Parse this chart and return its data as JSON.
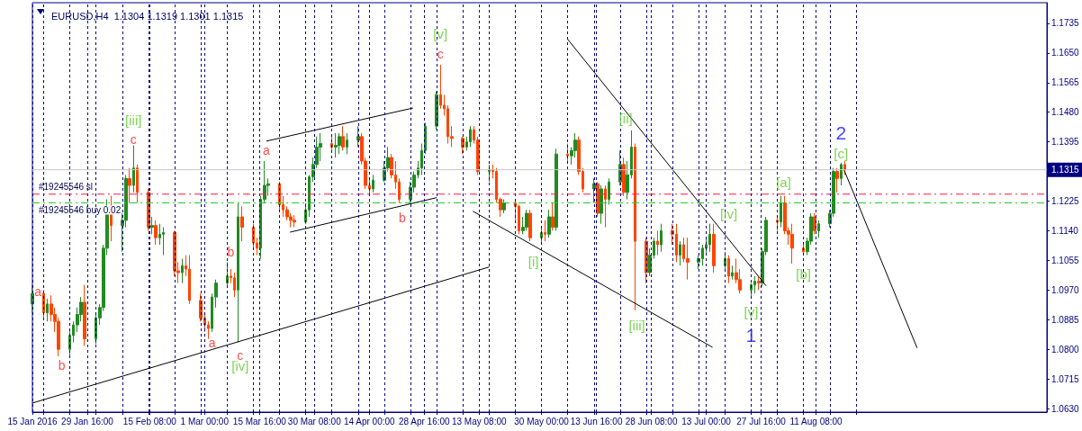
{
  "chart_data": {
    "type": "candlestick",
    "title": "EURUSD,H4  1.1304 1.1319 1.1301 1.1315",
    "xlim": [
      "2016-01-15",
      "2016-10-12"
    ],
    "ylim": [
      1.062,
      1.1794
    ],
    "xticks": [
      {
        "value": "2016-01-15",
        "label": "15 Jan 2016"
      },
      {
        "value": "2016-01-29T16:00",
        "label": "29 Jan 16:00"
      },
      {
        "value": "2016-02-15T08:00",
        "label": "15 Feb 08:00"
      },
      {
        "value": "2016-03-01T00:00",
        "label": "1 Mar 00:00"
      },
      {
        "value": "2016-03-15T16:00",
        "label": "15 Mar 16:00"
      },
      {
        "value": "2016-03-30T08:00",
        "label": "30 Mar 08:00"
      },
      {
        "value": "2016-04-14T00:00",
        "label": "14 Apr 00:00"
      },
      {
        "value": "2016-04-28T16:00",
        "label": "28 Apr 16:00"
      },
      {
        "value": "2016-05-13T08:00",
        "label": "13 May 08:00"
      },
      {
        "value": "2016-05-30T00:00",
        "label": "30 May 00:00"
      },
      {
        "value": "2016-06-13T16:00",
        "label": "13 Jun 16:00"
      },
      {
        "value": "2016-06-28T08:00",
        "label": "28 Jun 08:00"
      },
      {
        "value": "2016-07-13T00:00",
        "label": "13 Jul 00:00"
      },
      {
        "value": "2016-07-27T16:00",
        "label": "27 Jul 16:00"
      },
      {
        "value": "2016-08-11T08:00",
        "label": "11 Aug 08:00"
      },
      {
        "value": "2016-01-18",
        "label": null
      },
      {
        "value": "2016-01-25",
        "label": null
      },
      {
        "value": "2016-02-01",
        "label": null
      },
      {
        "value": "2016-02-08",
        "label": null
      },
      {
        "value": "2016-02-15",
        "label": null
      },
      {
        "value": "2016-02-22",
        "label": null
      },
      {
        "value": "2016-02-29",
        "label": null
      },
      {
        "value": "2016-03-07",
        "label": null
      },
      {
        "value": "2016-03-14",
        "label": null
      },
      {
        "value": "2016-03-21",
        "label": null
      },
      {
        "value": "2016-03-28",
        "label": null
      },
      {
        "value": "2016-04-04",
        "label": null
      },
      {
        "value": "2016-04-11",
        "label": null
      },
      {
        "value": "2016-04-18",
        "label": null
      },
      {
        "value": "2016-04-25",
        "label": null
      },
      {
        "value": "2016-05-02",
        "label": null
      },
      {
        "value": "2016-05-09",
        "label": null
      },
      {
        "value": "2016-05-16",
        "label": null
      },
      {
        "value": "2016-05-23",
        "label": null
      },
      {
        "value": "2016-06-06",
        "label": null
      },
      {
        "value": "2016-06-13",
        "label": null
      },
      {
        "value": "2016-06-20",
        "label": null
      },
      {
        "value": "2016-06-27",
        "label": null
      },
      {
        "value": "2016-07-04",
        "label": null
      },
      {
        "value": "2016-07-11",
        "label": null
      },
      {
        "value": "2016-07-18",
        "label": null
      },
      {
        "value": "2016-07-25",
        "label": null
      },
      {
        "value": "2016-08-01",
        "label": null
      },
      {
        "value": "2016-08-08",
        "label": null
      },
      {
        "value": "2016-08-15",
        "label": null
      },
      {
        "value": "2016-08-22",
        "label": null
      }
    ],
    "yticks": [
      {
        "value": 1.063,
        "label": "1.0630"
      },
      1.0715,
      {
        "value": 1.08,
        "label": "1.0800"
      },
      1.0885,
      {
        "value": 1.097,
        "label": "1.0970"
      },
      1.1055,
      {
        "value": 1.114,
        "label": "1.1140"
      },
      1.1225,
      1.1395,
      {
        "value": 1.148,
        "label": "1.1480"
      },
      1.1565,
      {
        "value": 1.165,
        "label": "1.1650"
      },
      1.1735
    ],
    "grid": "x",
    "ref_lines": [
      {
        "axis": "y",
        "value": 1.1245,
        "label": "#19245546 sl",
        "color": "#ff1a40",
        "line_style": "dashed"
      },
      {
        "axis": "y",
        "value": 1.122,
        "label": "#19245546 buy 0.02",
        "color": "#22cc22",
        "line_style": "dashed"
      },
      {
        "axis": "y",
        "value": 1.1315,
        "label": "1.1315",
        "color": "#c8c8c8",
        "line_style": "solid"
      }
    ],
    "annotations": [
      "a",
      "b",
      "[iii]",
      "c",
      "a",
      "b",
      "c",
      "[iv]",
      "a",
      "b",
      "[v]",
      "c",
      "[i]",
      "[ii]",
      "[iii]",
      "[iv]",
      "[v]",
      "1",
      "[a]",
      "[b]",
      "[c]",
      "2"
    ],
    "series": [
      {
        "x": [
          "2016-01-15",
          "2016-01-18",
          "2016-01-19",
          "2016-01-20",
          "2016-01-21",
          "2016-01-22",
          "2016-01-25",
          "2016-01-26",
          "2016-01-27",
          "2016-01-28",
          "2016-01-29",
          "2016-02-01",
          "2016-02-02",
          "2016-02-03",
          "2016-02-04",
          "2016-02-05",
          "2016-02-08",
          "2016-02-09",
          "2016-02-10",
          "2016-02-11",
          "2016-02-12",
          "2016-02-15",
          "2016-02-16",
          "2016-02-17",
          "2016-02-18",
          "2016-02-19",
          "2016-02-22",
          "2016-02-23",
          "2016-02-24",
          "2016-02-25",
          "2016-02-26",
          "2016-02-29",
          "2016-03-01",
          "2016-03-02",
          "2016-03-03",
          "2016-03-04",
          "2016-03-07",
          "2016-03-08",
          "2016-03-09",
          "2016-03-10",
          "2016-03-11",
          "2016-03-14",
          "2016-03-15",
          "2016-03-16",
          "2016-03-17",
          "2016-03-18",
          "2016-03-21",
          "2016-03-22",
          "2016-03-23",
          "2016-03-24",
          "2016-03-25",
          "2016-03-28",
          "2016-03-29",
          "2016-03-30",
          "2016-03-31",
          "2016-04-01",
          "2016-04-04",
          "2016-04-05",
          "2016-04-06",
          "2016-04-07",
          "2016-04-08",
          "2016-04-11",
          "2016-04-12",
          "2016-04-13",
          "2016-04-14",
          "2016-04-15",
          "2016-04-18",
          "2016-04-19",
          "2016-04-20",
          "2016-04-21",
          "2016-04-22",
          "2016-04-25",
          "2016-04-26",
          "2016-04-27",
          "2016-04-28",
          "2016-04-29",
          "2016-05-02",
          "2016-05-03",
          "2016-05-04",
          "2016-05-05",
          "2016-05-06",
          "2016-05-09",
          "2016-05-10",
          "2016-05-11",
          "2016-05-12",
          "2016-05-13",
          "2016-05-16",
          "2016-05-17",
          "2016-05-18",
          "2016-05-19",
          "2016-05-20",
          "2016-05-23",
          "2016-05-24",
          "2016-05-25",
          "2016-05-26",
          "2016-05-27",
          "2016-05-30",
          "2016-05-31",
          "2016-06-01",
          "2016-06-02",
          "2016-06-03",
          "2016-06-06",
          "2016-06-07",
          "2016-06-08",
          "2016-06-09",
          "2016-06-10",
          "2016-06-13",
          "2016-06-14",
          "2016-06-15",
          "2016-06-16",
          "2016-06-17",
          "2016-06-20",
          "2016-06-21",
          "2016-06-22",
          "2016-06-23",
          "2016-06-24",
          "2016-06-27",
          "2016-06-28",
          "2016-06-29",
          "2016-06-30",
          "2016-07-01",
          "2016-07-04",
          "2016-07-05",
          "2016-07-06",
          "2016-07-07",
          "2016-07-08",
          "2016-07-11",
          "2016-07-12",
          "2016-07-13",
          "2016-07-14",
          "2016-07-15",
          "2016-07-18",
          "2016-07-19",
          "2016-07-20",
          "2016-07-21",
          "2016-07-22",
          "2016-07-25",
          "2016-07-26",
          "2016-07-27",
          "2016-07-28",
          "2016-07-29",
          "2016-08-01",
          "2016-08-02",
          "2016-08-03",
          "2016-08-04",
          "2016-08-05",
          "2016-08-08",
          "2016-08-09",
          "2016-08-10",
          "2016-08-11",
          "2016-08-12",
          "2016-08-15",
          "2016-08-16",
          "2016-08-17",
          "2016-08-18",
          "2016-08-19"
        ],
        "ohlc": [
          [
            1.093,
            1.0985,
            1.0905,
            1.096
          ],
          [
            1.096,
            1.097,
            1.089,
            1.0905
          ],
          [
            1.0905,
            1.0945,
            1.088,
            1.093
          ],
          [
            1.093,
            1.0955,
            1.088,
            1.09
          ],
          [
            1.09,
            1.092,
            1.085,
            1.088
          ],
          [
            1.088,
            1.089,
            1.078,
            1.08
          ],
          [
            1.08,
            1.086,
            1.078,
            1.084
          ],
          [
            1.084,
            1.088,
            1.082,
            1.087
          ],
          [
            1.087,
            1.092,
            1.085,
            1.09
          ],
          [
            1.09,
            1.095,
            1.088,
            1.0935
          ],
          [
            1.0935,
            1.0985,
            1.081,
            1.083
          ],
          [
            1.083,
            1.09,
            1.0815,
            1.089
          ],
          [
            1.089,
            1.093,
            1.087,
            1.092
          ],
          [
            1.092,
            1.11,
            1.091,
            1.109
          ],
          [
            1.109,
            1.123,
            1.107,
            1.121
          ],
          [
            1.121,
            1.124,
            1.111,
            1.1155
          ],
          [
            1.1155,
            1.119,
            1.108,
            1.117
          ],
          [
            1.117,
            1.13,
            1.115,
            1.129
          ],
          [
            1.129,
            1.132,
            1.122,
            1.127
          ],
          [
            1.127,
            1.1385,
            1.125,
            1.132
          ],
          [
            1.132,
            1.133,
            1.122,
            1.125
          ],
          [
            1.125,
            1.126,
            1.114,
            1.115
          ],
          [
            1.115,
            1.118,
            1.113,
            1.1155
          ],
          [
            1.1155,
            1.117,
            1.11,
            1.112
          ],
          [
            1.112,
            1.116,
            1.11,
            1.113
          ],
          [
            1.113,
            1.115,
            1.107,
            1.1135
          ],
          [
            1.1135,
            1.114,
            1.101,
            1.1025
          ],
          [
            1.1025,
            1.105,
            1.099,
            1.102
          ],
          [
            1.102,
            1.106,
            1.099,
            1.104
          ],
          [
            1.104,
            1.107,
            1.101,
            1.103
          ],
          [
            1.103,
            1.107,
            1.093,
            1.094
          ],
          [
            1.094,
            1.096,
            1.088,
            1.089
          ],
          [
            1.089,
            1.09,
            1.085,
            1.087
          ],
          [
            1.087,
            1.088,
            1.083,
            1.086
          ],
          [
            1.086,
            1.096,
            1.085,
            1.095
          ],
          [
            1.095,
            1.1,
            1.092,
            1.099
          ],
          [
            1.099,
            1.105,
            1.098,
            1.101
          ],
          [
            1.101,
            1.103,
            1.099,
            1.1005
          ],
          [
            1.1005,
            1.102,
            1.095,
            1.097
          ],
          [
            1.097,
            1.122,
            1.082,
            1.118
          ],
          [
            1.118,
            1.121,
            1.111,
            1.115
          ],
          [
            1.115,
            1.116,
            1.109,
            1.1105
          ],
          [
            1.1105,
            1.112,
            1.107,
            1.109
          ],
          [
            1.109,
            1.124,
            1.106,
            1.123
          ],
          [
            1.123,
            1.134,
            1.122,
            1.127
          ],
          [
            1.127,
            1.129,
            1.124,
            1.1275
          ],
          [
            1.1275,
            1.128,
            1.12,
            1.1215
          ],
          [
            1.1215,
            1.124,
            1.118,
            1.12
          ],
          [
            1.12,
            1.121,
            1.117,
            1.118
          ],
          [
            1.118,
            1.119,
            1.115,
            1.117
          ],
          [
            1.117,
            1.1185,
            1.115,
            1.1165
          ],
          [
            1.1165,
            1.122,
            1.116,
            1.12
          ],
          [
            1.12,
            1.13,
            1.118,
            1.1295
          ],
          [
            1.1295,
            1.135,
            1.128,
            1.133
          ],
          [
            1.133,
            1.141,
            1.132,
            1.138
          ],
          [
            1.138,
            1.142,
            1.134,
            1.139
          ],
          [
            1.139,
            1.141,
            1.137,
            1.138
          ],
          [
            1.138,
            1.142,
            1.135,
            1.1385
          ],
          [
            1.1385,
            1.142,
            1.136,
            1.141
          ],
          [
            1.141,
            1.144,
            1.137,
            1.138
          ],
          [
            1.138,
            1.142,
            1.136,
            1.14
          ],
          [
            1.14,
            1.144,
            1.138,
            1.141
          ],
          [
            1.141,
            1.142,
            1.133,
            1.134
          ],
          [
            1.134,
            1.135,
            1.126,
            1.127
          ],
          [
            1.127,
            1.129,
            1.124,
            1.126
          ],
          [
            1.126,
            1.13,
            1.125,
            1.1285
          ],
          [
            1.1285,
            1.134,
            1.128,
            1.132
          ],
          [
            1.132,
            1.138,
            1.131,
            1.135
          ],
          [
            1.135,
            1.136,
            1.129,
            1.13
          ],
          [
            1.13,
            1.134,
            1.126,
            1.128
          ],
          [
            1.128,
            1.129,
            1.122,
            1.123
          ],
          [
            1.123,
            1.128,
            1.122,
            1.1265
          ],
          [
            1.1265,
            1.131,
            1.125,
            1.13
          ],
          [
            1.13,
            1.134,
            1.129,
            1.132
          ],
          [
            1.132,
            1.139,
            1.13,
            1.137
          ],
          [
            1.137,
            1.145,
            1.136,
            1.144
          ],
          [
            1.144,
            1.154,
            1.143,
            1.153
          ],
          [
            1.153,
            1.1616,
            1.149,
            1.15
          ],
          [
            1.15,
            1.153,
            1.147,
            1.149
          ],
          [
            1.149,
            1.15,
            1.139,
            1.141
          ],
          [
            1.141,
            1.144,
            1.138,
            1.1405
          ],
          [
            1.1405,
            1.141,
            1.136,
            1.138
          ],
          [
            1.138,
            1.141,
            1.137,
            1.1395
          ],
          [
            1.1395,
            1.144,
            1.138,
            1.143
          ],
          [
            1.143,
            1.144,
            1.139,
            1.14
          ],
          [
            1.14,
            1.141,
            1.13,
            1.131
          ],
          [
            1.131,
            1.133,
            1.128,
            1.1315
          ],
          [
            1.1315,
            1.133,
            1.129,
            1.131
          ],
          [
            1.131,
            1.132,
            1.122,
            1.123
          ],
          [
            1.123,
            1.1235,
            1.118,
            1.12
          ],
          [
            1.12,
            1.123,
            1.119,
            1.122
          ],
          [
            1.122,
            1.123,
            1.117,
            1.121
          ],
          [
            1.121,
            1.1215,
            1.113,
            1.114
          ],
          [
            1.114,
            1.118,
            1.113,
            1.115
          ],
          [
            1.115,
            1.12,
            1.114,
            1.119
          ],
          [
            1.119,
            1.12,
            1.111,
            1.112
          ],
          [
            1.112,
            1.115,
            1.11,
            1.1135
          ],
          [
            1.1135,
            1.117,
            1.111,
            1.113
          ],
          [
            1.113,
            1.12,
            1.112,
            1.118
          ],
          [
            1.118,
            1.122,
            1.114,
            1.115
          ],
          [
            1.115,
            1.1375,
            1.114,
            1.136
          ],
          [
            1.136,
            1.139,
            1.134,
            1.1355
          ],
          [
            1.1355,
            1.138,
            1.133,
            1.137
          ],
          [
            1.137,
            1.142,
            1.135,
            1.14
          ],
          [
            1.14,
            1.141,
            1.13,
            1.131
          ],
          [
            1.131,
            1.132,
            1.125,
            1.126
          ],
          [
            1.126,
            1.129,
            1.122,
            1.1275
          ],
          [
            1.1275,
            1.128,
            1.118,
            1.119
          ],
          [
            1.119,
            1.127,
            1.116,
            1.126
          ],
          [
            1.126,
            1.127,
            1.115,
            1.123
          ],
          [
            1.123,
            1.129,
            1.1215,
            1.128
          ],
          [
            1.128,
            1.137,
            1.127,
            1.133
          ],
          [
            1.133,
            1.135,
            1.124,
            1.125
          ],
          [
            1.125,
            1.134,
            1.123,
            1.13
          ],
          [
            1.13,
            1.1428,
            1.129,
            1.138
          ],
          [
            1.138,
            1.139,
            1.0912,
            1.111
          ],
          [
            1.111,
            1.112,
            1.099,
            1.102
          ],
          [
            1.102,
            1.109,
            1.101,
            1.107
          ],
          [
            1.107,
            1.112,
            1.106,
            1.111
          ],
          [
            1.111,
            1.114,
            1.107,
            1.11
          ],
          [
            1.11,
            1.116,
            1.108,
            1.114
          ],
          [
            1.114,
            1.116,
            1.11,
            1.113
          ],
          [
            1.113,
            1.116,
            1.105,
            1.107
          ],
          [
            1.107,
            1.111,
            1.104,
            1.11
          ],
          [
            1.11,
            1.112,
            1.105,
            1.106
          ],
          [
            1.106,
            1.112,
            1.1,
            1.105
          ],
          [
            1.105,
            1.107,
            1.103,
            1.106
          ],
          [
            1.106,
            1.11,
            1.104,
            1.109
          ],
          [
            1.109,
            1.112,
            1.107,
            1.11
          ],
          [
            1.11,
            1.116,
            1.108,
            1.113
          ],
          [
            1.113,
            1.116,
            1.102,
            1.104
          ],
          [
            1.104,
            1.108,
            1.103,
            1.106
          ],
          [
            1.106,
            1.107,
            1.099,
            1.101
          ],
          [
            1.101,
            1.104,
            1.1,
            1.102
          ],
          [
            1.102,
            1.106,
            1.099,
            1.1
          ],
          [
            1.1,
            1.103,
            1.096,
            1.097
          ],
          [
            1.097,
            1.099,
            1.0952,
            1.0985
          ],
          [
            1.0985,
            1.101,
            1.096,
            1.0995
          ],
          [
            1.0995,
            1.101,
            1.097,
            1.099
          ],
          [
            1.099,
            1.109,
            1.098,
            1.108
          ],
          [
            1.108,
            1.118,
            1.107,
            1.117
          ],
          [
            1.117,
            1.118,
            1.114,
            1.1165
          ],
          [
            1.1165,
            1.124,
            1.115,
            1.122
          ],
          [
            1.122,
            1.124,
            1.113,
            1.114
          ],
          [
            1.114,
            1.115,
            1.11,
            1.113
          ],
          [
            1.113,
            1.116,
            1.1046,
            1.109
          ],
          [
            1.109,
            1.11,
            1.107,
            1.108
          ],
          [
            1.108,
            1.112,
            1.107,
            1.111
          ],
          [
            1.111,
            1.119,
            1.11,
            1.118
          ],
          [
            1.118,
            1.119,
            1.113,
            1.114
          ],
          [
            1.114,
            1.117,
            1.112,
            1.116
          ],
          [
            1.116,
            1.12,
            1.115,
            1.119
          ],
          [
            1.119,
            1.132,
            1.118,
            1.131
          ],
          [
            1.131,
            1.132,
            1.125,
            1.129
          ],
          [
            1.129,
            1.1335,
            1.127,
            1.133
          ],
          [
            1.133,
            1.134,
            1.13,
            1.1315
          ]
        ],
        "colors": [
          "#228b22",
          "#ff4500",
          "#228b22",
          "#ff4500",
          "#ff4500",
          "#ff4500",
          "#228b22",
          "#228b22",
          "#228b22",
          "#228b22",
          "#ff4500",
          "#228b22",
          "#228b22",
          "#228b22",
          "#228b22",
          "#ff4500",
          "#228b22",
          "#228b22",
          "#ff4500",
          "#228b22",
          "#ff4500",
          "#ff4500",
          "#228b22",
          "#ff4500",
          "#228b22",
          "#228b22",
          "#ff4500",
          "#ff4500",
          "#228b22",
          "#ff4500",
          "#ff4500",
          "#ff4500",
          "#ff4500",
          "#ff4500",
          "#228b22",
          "#228b22",
          "#228b22",
          "#ff4500",
          "#ff4500",
          "#228b22",
          "#ff4500",
          "#ff4500",
          "#ff4500",
          "#228b22",
          "#228b22",
          "#228b22",
          "#ff4500",
          "#ff4500",
          "#ff4500",
          "#ff4500",
          "#ff4500",
          "#228b22",
          "#228b22",
          "#228b22",
          "#228b22",
          "#228b22",
          "#ff4500",
          "#228b22",
          "#228b22",
          "#ff4500",
          "#228b22",
          "#228b22",
          "#ff4500",
          "#ff4500",
          "#ff4500",
          "#228b22",
          "#228b22",
          "#228b22",
          "#ff4500",
          "#ff4500",
          "#ff4500",
          "#228b22",
          "#228b22",
          "#228b22",
          "#228b22",
          "#228b22",
          "#228b22",
          "#ff4500",
          "#ff4500",
          "#ff4500",
          "#ff4500",
          "#ff4500",
          "#228b22",
          "#228b22",
          "#ff4500",
          "#ff4500",
          "#228b22",
          "#ff4500",
          "#ff4500",
          "#ff4500",
          "#228b22",
          "#ff4500",
          "#ff4500",
          "#228b22",
          "#228b22",
          "#ff4500",
          "#228b22",
          "#ff4500",
          "#228b22",
          "#ff4500",
          "#228b22",
          "#ff4500",
          "#228b22",
          "#228b22",
          "#ff4500",
          "#ff4500",
          "#228b22",
          "#ff4500",
          "#228b22",
          "#ff4500",
          "#228b22",
          "#228b22",
          "#ff4500",
          "#228b22",
          "#228b22",
          "#ff4500",
          "#ff4500",
          "#228b22",
          "#228b22",
          "#ff4500",
          "#228b22",
          "#ff4500",
          "#ff4500",
          "#228b22",
          "#ff4500",
          "#ff4500",
          "#228b22",
          "#228b22",
          "#228b22",
          "#228b22",
          "#ff4500",
          "#228b22",
          "#ff4500",
          "#228b22",
          "#ff4500",
          "#ff4500",
          "#228b22",
          "#228b22",
          "#ff4500",
          "#228b22",
          "#228b22",
          "#ff4500",
          "#228b22",
          "#ff4500",
          "#ff4500",
          "#ff4500",
          "#ff4500",
          "#228b22",
          "#228b22",
          "#ff4500",
          "#228b22",
          "#228b22",
          "#228b22",
          "#ff4500",
          "#228b22",
          "#ff4500"
        ]
      },
      {
        "type": "line",
        "color": "#000000",
        "x": [
          "2016-01-15",
          "2016-05-16"
        ],
        "values": [
          1.0646,
          1.1036
        ]
      },
      {
        "type": "line",
        "color": "#000000",
        "x": [
          "2016-03-17T12:00",
          "2016-04-25T16:00"
        ],
        "values": [
          1.1397,
          1.1492
        ]
      },
      {
        "type": "line",
        "color": "#000000",
        "x": [
          "2016-03-23T20:00",
          "2016-05-02"
        ],
        "values": [
          1.1136,
          1.1235
        ]
      },
      {
        "type": "line",
        "color": "#000000",
        "x": [
          "2016-06-06",
          "2016-07-29"
        ],
        "values": [
          1.1689,
          1.0982
        ]
      },
      {
        "type": "line",
        "color": "#000000",
        "x": [
          "2016-05-11T16:00",
          "2016-07-14T16:00"
        ],
        "values": [
          1.1196,
          1.0806
        ]
      },
      {
        "type": "line",
        "color": "#000000",
        "x": [
          "2016-08-18T20:00",
          "2016-09-07T08:00"
        ],
        "values": [
          1.1314,
          1.0804
        ]
      }
    ]
  }
}
